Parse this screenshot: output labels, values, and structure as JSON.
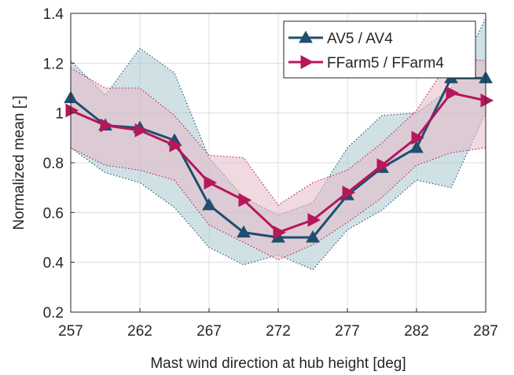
{
  "chart_data": {
    "type": "line",
    "xlabel": "Mast wind direction at hub height [deg]",
    "ylabel": "Normalized mean [-]",
    "xlim": [
      257,
      287
    ],
    "ylim": [
      0.2,
      1.4
    ],
    "x_ticks": [
      "257",
      "262",
      "267",
      "272",
      "277",
      "282",
      "287"
    ],
    "y_ticks": [
      "0.2",
      "0.4",
      "0.6",
      "0.8",
      "1",
      "1.2",
      "1.4"
    ],
    "grid": true,
    "legend_position": "top-right",
    "series": [
      {
        "name": "AV5 / AV4",
        "color": "#1f4e6e",
        "band_color": "#a9c8d2",
        "marker": "triangle-up",
        "x": [
          257,
          259.5,
          262,
          264.5,
          267,
          269.5,
          272,
          274.5,
          277,
          279.5,
          282,
          284.5,
          287
        ],
        "values": [
          1.06,
          0.95,
          0.94,
          0.89,
          0.63,
          0.52,
          0.5,
          0.5,
          0.67,
          0.78,
          0.86,
          1.14,
          1.14
        ],
        "band_upper": [
          1.21,
          1.07,
          1.26,
          1.16,
          0.82,
          0.66,
          0.59,
          0.64,
          0.86,
          0.99,
          1.0,
          1.1,
          1.38
        ],
        "band_lower": [
          0.86,
          0.76,
          0.72,
          0.62,
          0.46,
          0.39,
          0.43,
          0.37,
          0.53,
          0.61,
          0.73,
          0.7,
          1.0
        ]
      },
      {
        "name": "FFarm5 / FFarm4",
        "color": "#b5185a",
        "band_color": "#e6b9c7",
        "marker": "triangle-right",
        "x": [
          257,
          259.5,
          262,
          264.5,
          267,
          269.5,
          272,
          274.5,
          277,
          279.5,
          282,
          284.5,
          287
        ],
        "values": [
          1.01,
          0.95,
          0.93,
          0.87,
          0.72,
          0.65,
          0.52,
          0.57,
          0.68,
          0.79,
          0.9,
          1.08,
          1.05
        ],
        "band_upper": [
          1.18,
          1.1,
          1.1,
          0.99,
          0.83,
          0.82,
          0.63,
          0.72,
          0.77,
          0.88,
          1.01,
          1.22,
          1.21
        ],
        "band_lower": [
          0.86,
          0.79,
          0.77,
          0.73,
          0.55,
          0.48,
          0.41,
          0.47,
          0.56,
          0.66,
          0.79,
          0.84,
          0.86
        ]
      }
    ]
  }
}
